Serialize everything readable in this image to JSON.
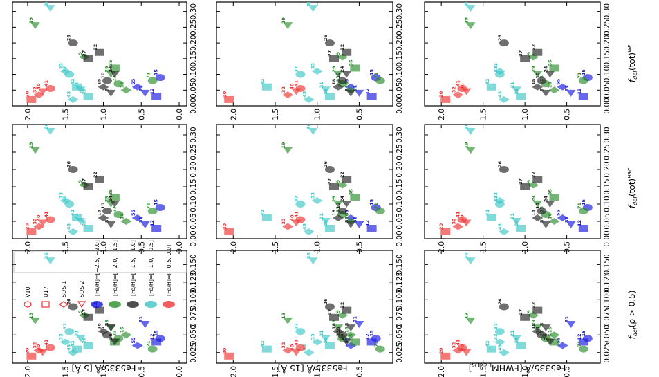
{
  "figure": {
    "row_labels": [
      "Fe5335/Å [5 Å]",
      "Fe5335/Å [15 Å]",
      "Fe5335/Å [FWHM"
    ],
    "row_label_sub": "LickIDs",
    "row_label_end": "]",
    "col_labels": [
      "f",
      "f",
      "f"
    ],
    "col_label_subs": [
      "def",
      "def",
      "def"
    ],
    "col_label_suffixes": [
      "(ρ > 0.5)",
      "(tot)",
      "(tot)"
    ],
    "col_label_sups": [
      "",
      "HRC",
      "WF"
    ]
  },
  "legend": {
    "symbol_items": [
      "V10",
      "U17",
      "SDS-1",
      "SDS-2"
    ],
    "metal_items": [
      "[Fe/H]=[−2.5, −2.0]",
      "[Fe/H]=[−2.0, −1.5]",
      "[Fe/H]=[−1.5, −1.0]",
      "[Fe/H]=[−1.0, −0.5]",
      "[Fe/H]=[−0.5, 0.0]"
    ]
  },
  "colors": {
    "blue": "#1515e0",
    "green": "#2a8c2a",
    "black": "#222222",
    "cyan": "#3cc6c6",
    "red": "#ee3333"
  },
  "chart_data": {
    "type": "scatter",
    "grid": false,
    "note": "Figure is rotated 90 degrees; x values are f_def, y values are Fe5335/A. Panels arranged as 3 rows (index measurement) x 3 columns (f_def definition).",
    "columns": [
      {
        "xlabel": "f_def(rho > 0.5)",
        "xlim": [
          0.01,
          0.17
        ],
        "xticks": [
          0.025,
          0.05,
          0.075,
          0.1,
          0.125,
          0.15
        ]
      },
      {
        "xlabel": "f_def(tot)^HRC",
        "xlim": [
          0.0,
          0.33
        ],
        "xticks": [
          0.0,
          0.05,
          0.1,
          0.15,
          0.2,
          0.25,
          0.3
        ]
      },
      {
        "xlabel": "f_def(tot)^WF",
        "xlim": [
          0.0,
          0.33
        ],
        "xticks": [
          0.0,
          0.05,
          0.1,
          0.15,
          0.2,
          0.25,
          0.3
        ]
      }
    ],
    "rows": [
      {
        "ylabel": "Fe5335/A [5 A]",
        "ylim": [
          -0.1,
          2.2
        ],
        "yticks": [
          0.0,
          0.5,
          1.0,
          1.5,
          2.0
        ]
      },
      {
        "ylabel": "Fe5335/A [15 A]",
        "ylim": [
          0.1,
          2.2
        ],
        "yticks": [
          0.5,
          1.0,
          1.5,
          2.0
        ]
      },
      {
        "ylabel": "Fe5335/A [FWHM LickIDs]",
        "ylim": [
          0.1,
          2.2
        ],
        "yticks": [
          0.5,
          1.0,
          1.5,
          2.0
        ]
      }
    ],
    "series": [
      {
        "name": "[Fe/H]=[-2.5,-2.0]",
        "color": "blue",
        "points": [
          {
            "id": "12",
            "x1": 0.04,
            "x": 0.03,
            "y": [
              0.3,
              0.35,
              0.3
            ]
          },
          {
            "id": "55",
            "x1": 0.035,
            "x": 0.06,
            "y": [
              0.55,
              0.6,
              0.55
            ]
          },
          {
            "id": "15",
            "x1": 0.045,
            "x": 0.09,
            "y": [
              0.25,
              0.3,
              0.25
            ]
          },
          {
            "id": "31",
            "x1": 0.065,
            "x": 0.04,
            "y": [
              0.45,
              0.5,
              0.45
            ]
          }
        ]
      },
      {
        "name": "[Fe/H]=[-2.0,-1.5]",
        "color": "green",
        "points": [
          {
            "id": "16",
            "x1": 0.05,
            "x": 0.05,
            "y": [
              0.7,
              0.6,
              0.65
            ]
          },
          {
            "id": "23",
            "x1": 0.045,
            "x": 0.07,
            "y": [
              0.8,
              0.7,
              0.75
            ]
          },
          {
            "id": "29",
            "x1": 0.06,
            "x": 0.1,
            "y": [
              0.9,
              0.75,
              0.85
            ]
          },
          {
            "id": "35",
            "x1": 0.04,
            "x": 0.12,
            "y": [
              0.85,
              0.55,
              0.65
            ]
          },
          {
            "id": "9",
            "x1": 0.078,
            "x": 0.155,
            "y": [
              1.25,
              0.7,
              0.9
            ]
          },
          {
            "id": "71",
            "x1": 0.03,
            "x": 0.08,
            "y": [
              0.35,
              0.25,
              0.3
            ]
          },
          {
            "id": "19",
            "x1": 0.07,
            "x": 0.255,
            "y": [
              1.9,
              1.35,
              1.65
            ]
          }
        ]
      },
      {
        "name": "[Fe/H]=[-1.5,-1.0]",
        "color": "black",
        "points": [
          {
            "id": "26",
            "x1": 0.09,
            "x": 0.2,
            "y": [
              1.4,
              0.85,
              1.25
            ]
          },
          {
            "id": "3",
            "x1": 0.06,
            "x": 0.04,
            "y": [
              0.9,
              0.6,
              0.75
            ]
          },
          {
            "id": "22",
            "x1": 0.085,
            "x": 0.17,
            "y": [
              1.05,
              0.65,
              0.85
            ]
          },
          {
            "id": "18",
            "x1": 0.055,
            "x": 0.06,
            "y": [
              1.0,
              0.75,
              0.85
            ]
          },
          {
            "id": "10",
            "x1": 0.05,
            "x": 0.08,
            "y": [
              0.95,
              0.7,
              0.8
            ]
          },
          {
            "id": "24",
            "x1": 0.04,
            "x": 0.1,
            "y": [
              0.85,
              0.65,
              0.7
            ]
          },
          {
            "id": "27",
            "x1": 0.075,
            "x": 0.15,
            "y": [
              1.2,
              0.8,
              1.0
            ]
          }
        ]
      },
      {
        "name": "[Fe/H]=[-1.0,-0.5]",
        "color": "cyan",
        "points": [
          {
            "id": "36",
            "x1": 0.155,
            "x": 0.31,
            "y": [
              1.7,
              1.05,
              1.65
            ]
          },
          {
            "id": "42",
            "x1": 0.03,
            "x": 0.06,
            "y": [
              1.35,
              1.6,
              1.4
            ]
          },
          {
            "id": "33",
            "x1": 0.04,
            "x": 0.11,
            "y": [
              1.5,
              1.0,
              1.3
            ]
          },
          {
            "id": "37",
            "x1": 0.055,
            "x": 0.1,
            "y": [
              1.45,
              1.2,
              1.3
            ]
          },
          {
            "id": "21",
            "x1": 0.045,
            "x": 0.05,
            "y": [
              1.3,
              0.9,
              1.1
            ]
          },
          {
            "id": "28",
            "x1": 0.035,
            "x": 0.03,
            "y": [
              1.2,
              0.85,
              1.05
            ]
          },
          {
            "id": "43",
            "x1": 0.025,
            "x": 0.02,
            "y": [
              1.4,
              1.1,
              1.25
            ]
          }
        ]
      },
      {
        "name": "[Fe/H]=[-0.5,0.0]",
        "color": "red",
        "points": [
          {
            "id": "20",
            "x1": 0.02,
            "x": 0.02,
            "y": [
              1.95,
              2.05,
              1.95
            ]
          },
          {
            "id": "32",
            "x1": 0.028,
            "x": 0.035,
            "y": [
              1.85,
              1.35,
              1.8
            ]
          },
          {
            "id": "41",
            "x1": 0.032,
            "x": 0.055,
            "y": [
              1.7,
              1.2,
              1.75
            ]
          },
          {
            "id": "40",
            "x1": 0.025,
            "x": 0.045,
            "y": [
              1.8,
              1.25,
              1.7
            ]
          }
        ]
      }
    ]
  }
}
